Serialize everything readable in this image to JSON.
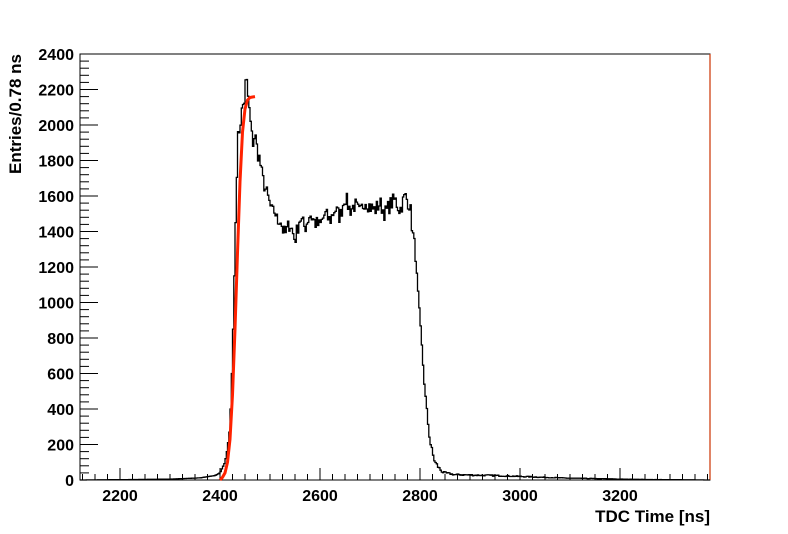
{
  "chart_data": {
    "type": "histogram",
    "xlabel": "TDC Time [ns]",
    "ylabel": "Entries/0.78 ns",
    "xlim": [
      2120,
      3380
    ],
    "ylim": [
      0,
      2400
    ],
    "xticks": [
      2200,
      2400,
      2600,
      2800,
      3000,
      3200
    ],
    "yticks": [
      0,
      200,
      400,
      600,
      800,
      1000,
      1200,
      1400,
      1600,
      1800,
      2000,
      2200,
      2400
    ],
    "grid": false,
    "legend": "none",
    "bin_width": 0.78,
    "series": [
      {
        "kind": "histogram",
        "color": "#000000",
        "x": [
          2120,
          2200,
          2300,
          2360,
          2390,
          2400,
          2405,
          2410,
          2415,
          2420,
          2425,
          2430,
          2435,
          2440,
          2445,
          2450,
          2452,
          2455,
          2458,
          2460,
          2463,
          2466,
          2470,
          2475,
          2480,
          2485,
          2490,
          2495,
          2500,
          2505,
          2510,
          2515,
          2520,
          2525,
          2530,
          2540,
          2550,
          2560,
          2570,
          2580,
          2590,
          2600,
          2610,
          2620,
          2630,
          2640,
          2650,
          2660,
          2670,
          2680,
          2690,
          2700,
          2710,
          2720,
          2730,
          2740,
          2750,
          2760,
          2770,
          2780,
          2785,
          2790,
          2795,
          2800,
          2805,
          2810,
          2815,
          2820,
          2825,
          2830,
          2835,
          2840,
          2845,
          2850,
          2860,
          2870,
          2880,
          2900,
          2950,
          3000,
          3050,
          3100,
          3150,
          3200,
          3250,
          3300,
          3380
        ],
        "y": [
          0,
          2,
          5,
          12,
          25,
          40,
          70,
          100,
          180,
          300,
          700,
          1300,
          1900,
          2000,
          2100,
          2150,
          2280,
          2200,
          2100,
          2050,
          1950,
          1900,
          1950,
          1850,
          1800,
          1700,
          1650,
          1600,
          1550,
          1500,
          1520,
          1450,
          1480,
          1420,
          1380,
          1450,
          1350,
          1480,
          1420,
          1500,
          1450,
          1430,
          1500,
          1460,
          1530,
          1480,
          1600,
          1520,
          1550,
          1500,
          1580,
          1540,
          1520,
          1560,
          1500,
          1550,
          1580,
          1520,
          1600,
          1550,
          1400,
          1300,
          1100,
          900,
          700,
          500,
          350,
          220,
          150,
          100,
          80,
          60,
          45,
          40,
          35,
          30,
          30,
          28,
          25,
          20,
          15,
          10,
          8,
          5,
          3,
          2,
          0
        ]
      },
      {
        "kind": "fit",
        "color": "#ff2200",
        "x": [
          2400,
          2405,
          2410,
          2415,
          2420,
          2425,
          2430,
          2435,
          2440,
          2445,
          2450,
          2455,
          2460,
          2465,
          2470
        ],
        "y": [
          0,
          15,
          40,
          100,
          230,
          480,
          850,
          1280,
          1680,
          1960,
          2090,
          2140,
          2155,
          2158,
          2160
        ]
      }
    ]
  }
}
